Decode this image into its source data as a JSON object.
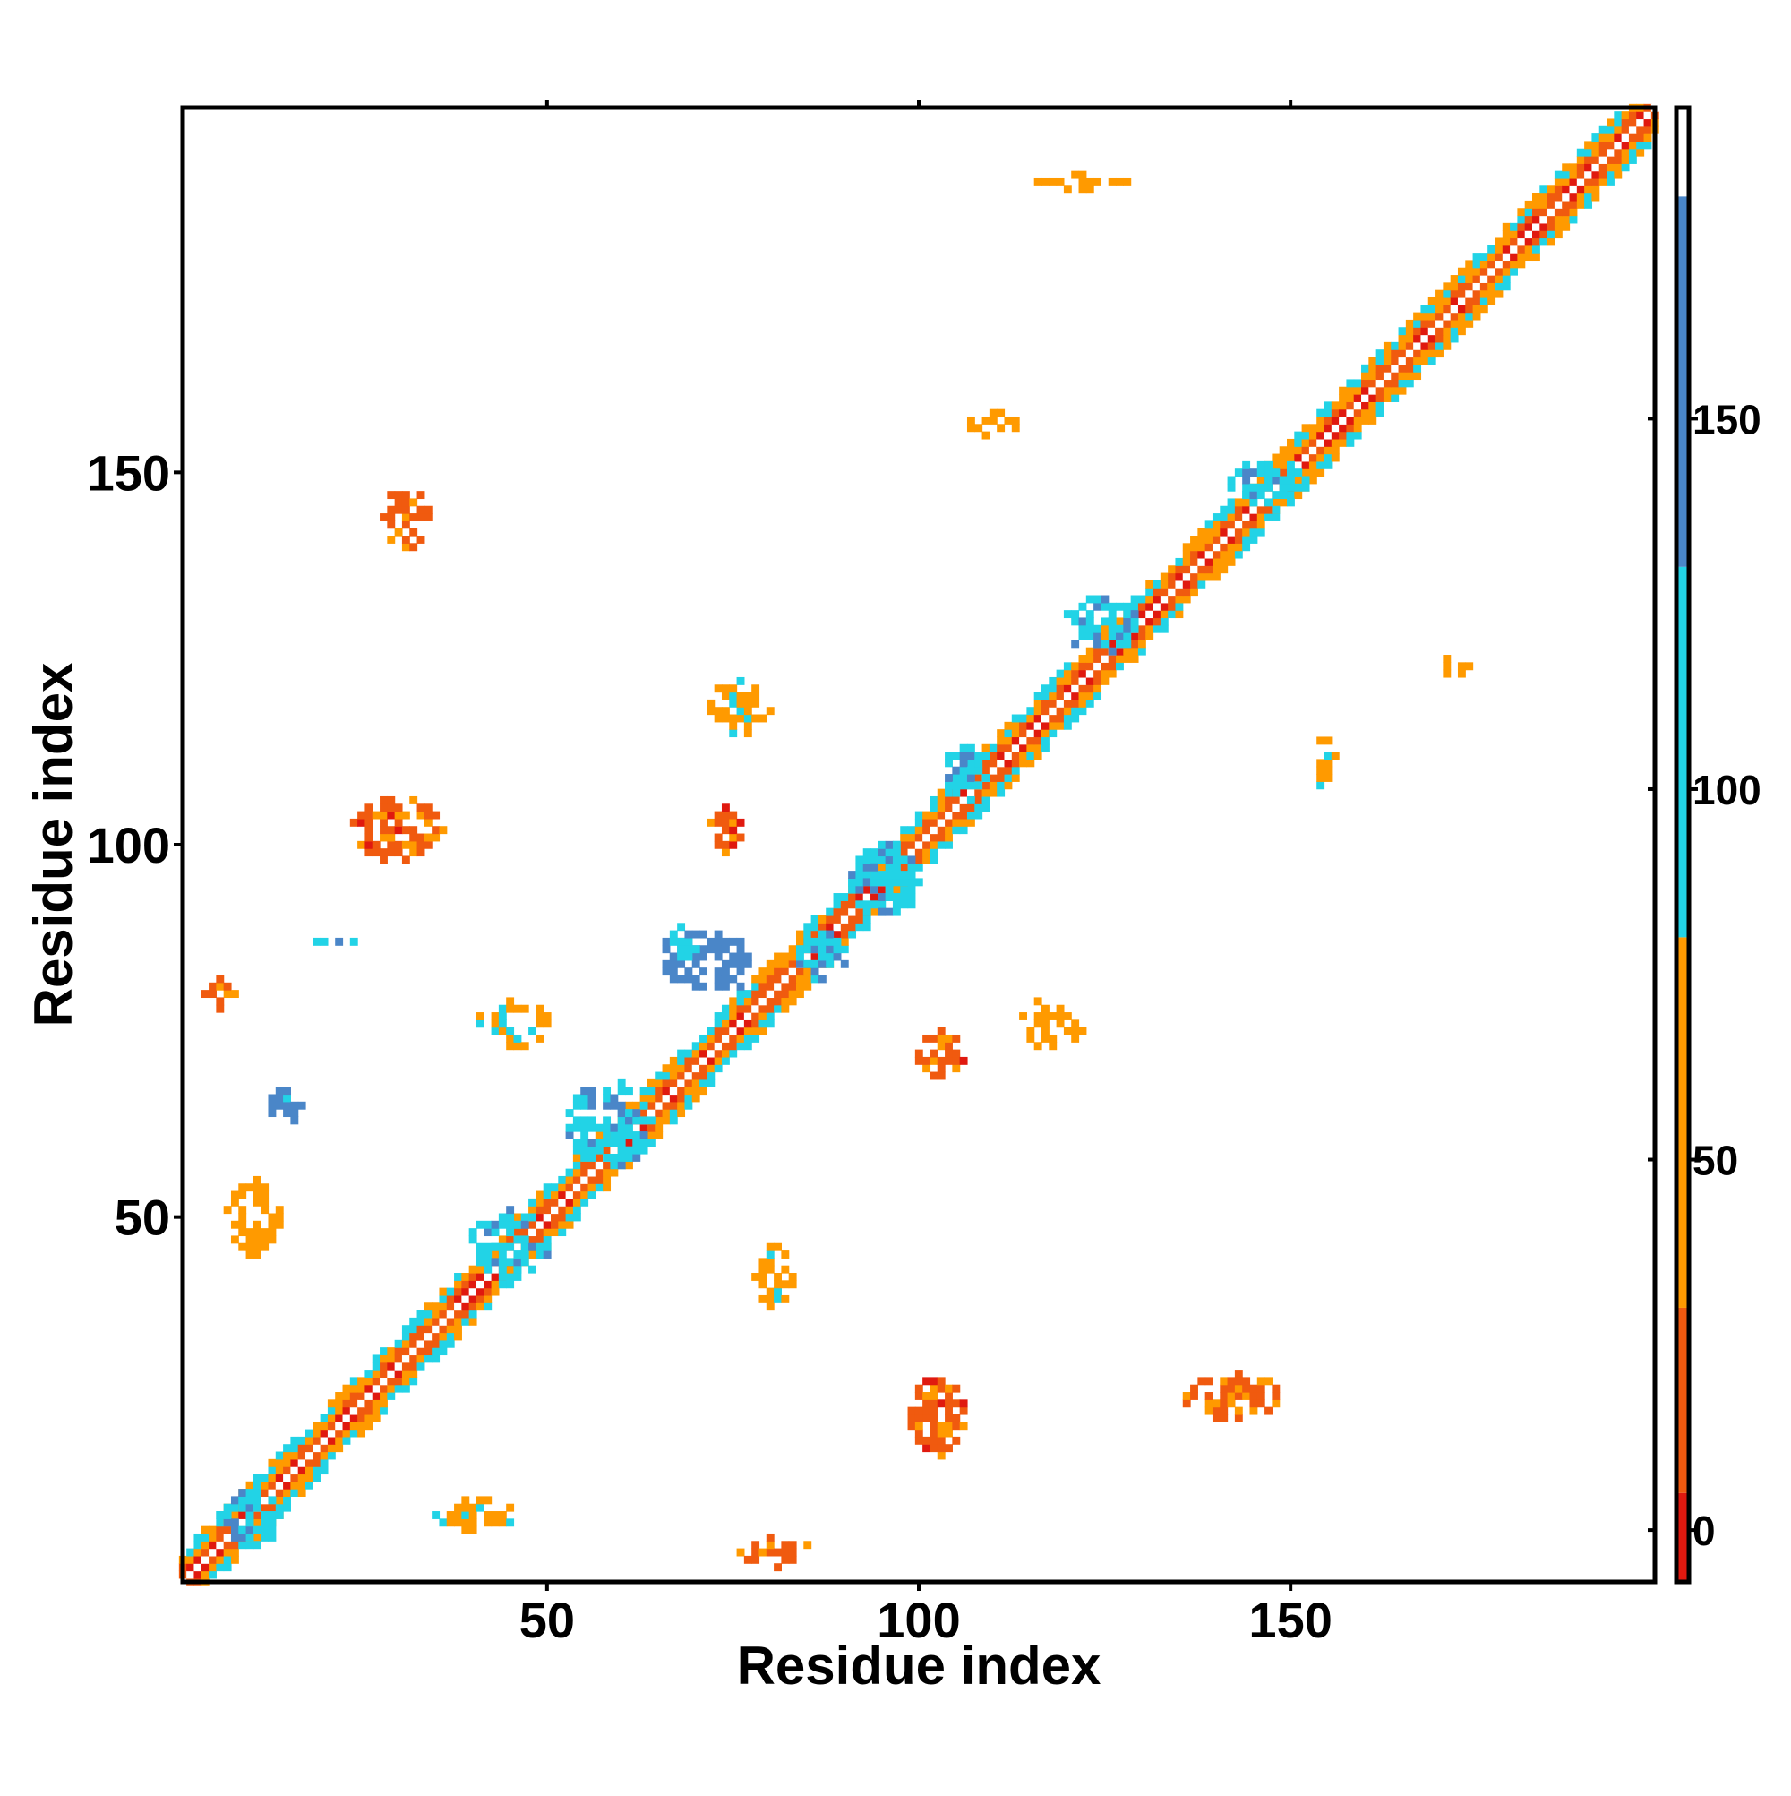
{
  "chart_data": {
    "type": "heatmap",
    "title": "",
    "xlabel": "Residue index",
    "ylabel": "Residue index",
    "xlim": [
      1,
      199
    ],
    "ylim": [
      1,
      199
    ],
    "xticks": [
      50,
      100,
      150
    ],
    "yticks": [
      50,
      100,
      150
    ],
    "grid": false,
    "legend": "colorbar-right",
    "colorbar": {
      "ticks": [
        0,
        50,
        100,
        150
      ],
      "range": [
        -7,
        192
      ],
      "bins": [
        {
          "from": -7,
          "to": 5,
          "color": "#e0190f"
        },
        {
          "from": 5,
          "to": 30,
          "color": "#f05a0f"
        },
        {
          "from": 30,
          "to": 80,
          "color": "#ff9a00"
        },
        {
          "from": 80,
          "to": 130,
          "color": "#22d3e6"
        },
        {
          "from": 130,
          "to": 180,
          "color": "#4a86c8"
        },
        {
          "from": 180,
          "to": 192,
          "color": "#ffffff"
        }
      ]
    },
    "diagonal": {
      "from": 1,
      "to": 199,
      "description": "dense near-diagonal band of contacts"
    },
    "off_diagonal_blocks": [
      {
        "x": [
          28,
          34
        ],
        "y": [
          140,
          148
        ],
        "level": 15
      },
      {
        "x": [
          24,
          36
        ],
        "y": [
          98,
          106
        ],
        "level": 12
      },
      {
        "x": [
          3,
          8
        ],
        "y": [
          78,
          82
        ],
        "level": 15
      },
      {
        "x": [
          72,
          76
        ],
        "y": [
          99,
          105
        ],
        "level": 10
      },
      {
        "x": [
          41,
          50
        ],
        "y": [
          73,
          79
        ],
        "level": 60
      },
      {
        "x": [
          76,
          86
        ],
        "y": [
          3,
          7
        ],
        "level": 20
      },
      {
        "x": [
          99,
          106
        ],
        "y": [
          17,
          29
        ],
        "level": 12
      },
      {
        "x": [
          136,
          148
        ],
        "y": [
          23,
          29
        ],
        "level": 15
      },
      {
        "x": [
          100,
          106
        ],
        "y": [
          68,
          75
        ],
        "level": 12
      },
      {
        "x": [
          113,
          122
        ],
        "y": [
          73,
          79
        ],
        "level": 40
      },
      {
        "x": [
          72,
          80
        ],
        "y": [
          115,
          122
        ],
        "level": 70
      },
      {
        "x": [
          107,
          113
        ],
        "y": [
          155,
          158
        ],
        "level": 40
      },
      {
        "x": [
          153,
          156
        ],
        "y": [
          108,
          114
        ],
        "level": 50
      },
      {
        "x": [
          35,
          46
        ],
        "y": [
          8,
          12
        ],
        "level": 60
      },
      {
        "x": [
          78,
          83
        ],
        "y": [
          38,
          46
        ],
        "level": 60
      },
      {
        "x": [
          66,
          78
        ],
        "y": [
          80,
          88
        ],
        "level": 140
      },
      {
        "x": [
          91,
          100
        ],
        "y": [
          90,
          100
        ],
        "level": 110
      },
      {
        "x": [
          84,
          90
        ],
        "y": [
          82,
          88
        ],
        "level": 100
      },
      {
        "x": [
          103,
          110
        ],
        "y": [
          106,
          113
        ],
        "level": 100
      },
      {
        "x": [
          142,
          152
        ],
        "y": [
          145,
          152
        ],
        "level": 100
      },
      {
        "x": [
          119,
          130
        ],
        "y": [
          126,
          133
        ],
        "level": 100
      },
      {
        "x": [
          53,
          64
        ],
        "y": [
          57,
          68
        ],
        "level": 100
      },
      {
        "x": [
          40,
          50
        ],
        "y": [
          42,
          51
        ],
        "level": 100
      },
      {
        "x": [
          6,
          14
        ],
        "y": [
          6,
          13
        ],
        "level": 100
      },
      {
        "x": [
          12,
          18
        ],
        "y": [
          63,
          67
        ],
        "level": 130
      },
      {
        "x": [
          19,
          25
        ],
        "y": [
          86,
          88
        ],
        "level": 100
      },
      {
        "x": [
          66,
          70
        ],
        "y": [
          84,
          89
        ],
        "level": 100
      },
      {
        "x": [
          7,
          14
        ],
        "y": [
          45,
          55
        ],
        "level": 40
      },
      {
        "x": [
          116,
          128
        ],
        "y": [
          188,
          190
        ],
        "level": 40
      },
      {
        "x": [
          170,
          174
        ],
        "y": [
          122,
          126
        ],
        "level": 40
      }
    ]
  }
}
